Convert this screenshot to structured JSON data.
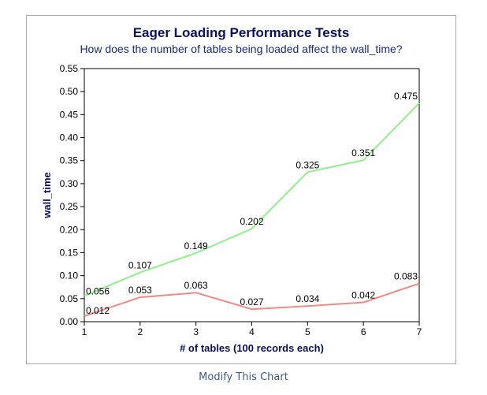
{
  "chart_data": {
    "type": "line",
    "title": "Eager Loading Performance Tests",
    "subtitle": "How does the number of tables being loaded affect the wall_time?",
    "xlabel": "# of tables (100 records each)",
    "ylabel": "wall_time",
    "x": [
      1,
      2,
      3,
      4,
      5,
      6,
      7
    ],
    "xlim": [
      1,
      7
    ],
    "ylim": [
      0,
      0.55
    ],
    "x_ticks": [
      "1",
      "2",
      "3",
      "4",
      "5",
      "6",
      "7"
    ],
    "y_ticks": [
      "0.00",
      "0.05",
      "0.10",
      "0.15",
      "0.20",
      "0.25",
      "0.30",
      "0.35",
      "0.40",
      "0.45",
      "0.50",
      "0.55"
    ],
    "grid": false,
    "series": [
      {
        "color": "#8ef08a",
        "values": [
          0.056,
          0.107,
          0.149,
          0.202,
          0.325,
          0.351,
          0.475
        ],
        "labels": [
          "0.056",
          "0.107",
          "0.149",
          "0.202",
          "0.325",
          "0.351",
          "0.475"
        ]
      },
      {
        "color": "#f08a86",
        "values": [
          0.012,
          0.053,
          0.063,
          0.027,
          0.034,
          0.042,
          0.083
        ],
        "labels": [
          "0.012",
          "0.053",
          "0.063",
          "0.027",
          "0.034",
          "0.042",
          "0.083"
        ]
      }
    ]
  },
  "footer": {
    "link_label": "Modify This Chart"
  }
}
